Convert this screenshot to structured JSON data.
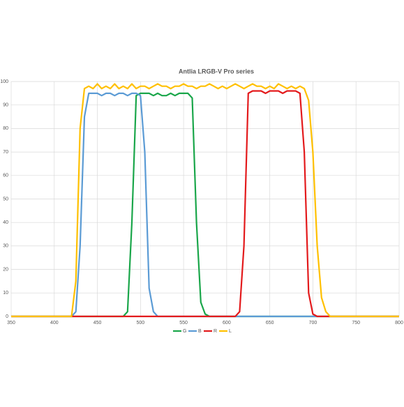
{
  "chart_data": {
    "type": "line",
    "title": "Antlia LRGB-V Pro series",
    "x": [
      350,
      355,
      360,
      365,
      370,
      375,
      380,
      385,
      390,
      395,
      400,
      405,
      410,
      415,
      420,
      425,
      430,
      435,
      440,
      445,
      450,
      455,
      460,
      465,
      470,
      475,
      480,
      485,
      490,
      495,
      500,
      505,
      510,
      515,
      520,
      525,
      530,
      535,
      540,
      545,
      550,
      555,
      560,
      565,
      570,
      575,
      580,
      585,
      590,
      595,
      600,
      605,
      610,
      615,
      620,
      625,
      630,
      635,
      640,
      645,
      650,
      655,
      660,
      665,
      670,
      675,
      680,
      685,
      690,
      695,
      700,
      705,
      710,
      715,
      720,
      725,
      730,
      735,
      740,
      745,
      750,
      755,
      760,
      765,
      770,
      775,
      780,
      785,
      790,
      795,
      800
    ],
    "series": [
      {
        "name": "G",
        "color": "#1aa64a",
        "values": [
          0,
          0,
          0,
          0,
          0,
          0,
          0,
          0,
          0,
          0,
          0,
          0,
          0,
          0,
          0,
          0,
          0,
          0,
          0,
          0,
          0,
          0,
          0,
          0,
          0,
          0,
          0,
          2,
          40,
          94,
          95,
          95,
          95,
          94,
          95,
          94,
          94,
          95,
          94,
          95,
          95,
          95,
          93,
          40,
          6,
          1,
          0,
          0,
          0,
          0,
          0,
          0,
          0,
          0,
          0,
          0,
          0,
          0,
          0,
          0,
          0,
          0,
          0,
          0,
          0,
          0,
          0,
          0,
          0,
          0,
          0,
          0,
          0,
          0,
          0,
          0,
          0,
          0,
          0,
          0,
          0,
          0,
          0,
          0,
          0,
          0,
          0,
          0,
          0,
          0,
          0
        ]
      },
      {
        "name": "B",
        "color": "#5b9bd5",
        "values": [
          0,
          0,
          0,
          0,
          0,
          0,
          0,
          0,
          0,
          0,
          0,
          0,
          0,
          0,
          0,
          2,
          30,
          85,
          95,
          95,
          95,
          94,
          95,
          95,
          94,
          95,
          95,
          94,
          95,
          95,
          94,
          70,
          12,
          2,
          0,
          0,
          0,
          0,
          0,
          0,
          0,
          0,
          0,
          0,
          0,
          0,
          0,
          0,
          0,
          0,
          0,
          0,
          0,
          0,
          0,
          0,
          0,
          0,
          0,
          0,
          0,
          0,
          0,
          0,
          0,
          0,
          0,
          0,
          0,
          0,
          0,
          0,
          0,
          0,
          0,
          0,
          0,
          0,
          0,
          0,
          0,
          0,
          0,
          0,
          0,
          0,
          0,
          0,
          0,
          0,
          0
        ]
      },
      {
        "name": "R",
        "color": "#e31a1c",
        "values": [
          0,
          0,
          0,
          0,
          0,
          0,
          0,
          0,
          0,
          0,
          0,
          0,
          0,
          0,
          0,
          0,
          0,
          0,
          0,
          0,
          0,
          0,
          0,
          0,
          0,
          0,
          0,
          0,
          0,
          0,
          0,
          0,
          0,
          0,
          0,
          0,
          0,
          0,
          0,
          0,
          0,
          0,
          0,
          0,
          0,
          0,
          0,
          0,
          0,
          0,
          0,
          0,
          0,
          2,
          30,
          95,
          96,
          96,
          96,
          95,
          96,
          96,
          96,
          95,
          96,
          96,
          96,
          95,
          70,
          10,
          1,
          0,
          0,
          0,
          0,
          0,
          0,
          0,
          0,
          0,
          0,
          0,
          0,
          0,
          0,
          0,
          0,
          0,
          0,
          0,
          0
        ]
      },
      {
        "name": "L",
        "color": "#ffc000",
        "values": [
          0,
          0,
          0,
          0,
          0,
          0,
          0,
          0,
          0,
          0,
          0,
          0,
          0,
          0,
          0,
          15,
          80,
          97,
          98,
          97,
          99,
          97,
          98,
          97,
          99,
          97,
          98,
          97,
          99,
          97,
          98,
          98,
          97,
          98,
          99,
          98,
          98,
          97,
          98,
          98,
          99,
          98,
          98,
          97,
          98,
          98,
          99,
          98,
          97,
          98,
          97,
          98,
          99,
          98,
          97,
          98,
          99,
          98,
          98,
          97,
          98,
          97,
          99,
          98,
          97,
          98,
          97,
          98,
          97,
          92,
          70,
          30,
          8,
          2,
          0,
          0,
          0,
          0,
          0,
          0,
          0,
          0,
          0,
          0,
          0,
          0,
          0,
          0,
          0,
          0,
          0
        ]
      }
    ],
    "xlim": [
      350,
      800
    ],
    "xticks": [
      350,
      400,
      450,
      500,
      550,
      600,
      650,
      700,
      750,
      800
    ],
    "ylim": [
      0,
      100
    ],
    "yticks": [
      0,
      10,
      20,
      30,
      40,
      50,
      60,
      70,
      80,
      90,
      100
    ],
    "grid": true
  }
}
